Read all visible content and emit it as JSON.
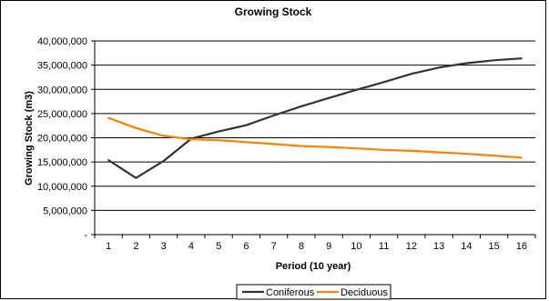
{
  "chart_data": {
    "type": "line",
    "title": "Growing Stock",
    "xlabel": "Period (10 year)",
    "ylabel": "Growing Stock (m3)",
    "categories": [
      "1",
      "2",
      "3",
      "4",
      "5",
      "6",
      "7",
      "8",
      "9",
      "10",
      "11",
      "12",
      "13",
      "14",
      "15",
      "16"
    ],
    "ylim": [
      0,
      40000000
    ],
    "yticks": [
      {
        "value": 0,
        "label": "-"
      },
      {
        "value": 5000000,
        "label": "5,000,000"
      },
      {
        "value": 10000000,
        "label": "10,000,000"
      },
      {
        "value": 15000000,
        "label": "15,000,000"
      },
      {
        "value": 20000000,
        "label": "20,000,000"
      },
      {
        "value": 25000000,
        "label": "25,000,000"
      },
      {
        "value": 30000000,
        "label": "30,000,000"
      },
      {
        "value": 35000000,
        "label": "35,000,000"
      },
      {
        "value": 40000000,
        "label": "40,000,000"
      }
    ],
    "grid": true,
    "legend_position": "bottom",
    "series": [
      {
        "name": "Coniferous",
        "color": "#333333",
        "values": [
          15400000,
          11700000,
          15200000,
          19800000,
          21300000,
          22600000,
          24600000,
          26500000,
          28200000,
          29900000,
          31500000,
          33200000,
          34500000,
          35400000,
          36000000,
          36400000
        ]
      },
      {
        "name": "Deciduous",
        "color": "#FF7F00",
        "values": [
          24100000,
          22000000,
          20400000,
          19700000,
          19500000,
          19100000,
          18700000,
          18300000,
          18100000,
          17800000,
          17500000,
          17300000,
          17000000,
          16700000,
          16300000,
          15900000
        ]
      }
    ]
  }
}
